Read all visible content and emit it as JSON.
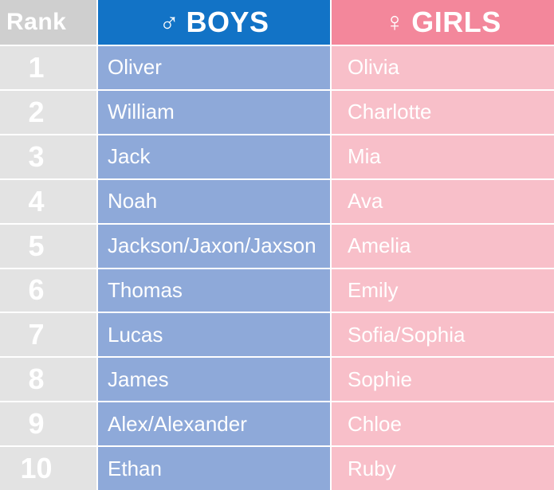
{
  "header": {
    "rank_label": "Rank",
    "boys_symbol": "♂",
    "boys_label": "BOYS",
    "girls_symbol": "♀",
    "girls_label": "GIRLS"
  },
  "colors": {
    "boys_header": "#1273c6",
    "boys_cell": "#8ea9d9",
    "girls_header": "#f3879b",
    "girls_cell": "#f8bfc9",
    "rank_header": "#cfcfcf",
    "rank_cell": "#e3e3e3"
  },
  "rows": [
    {
      "rank": "1",
      "boy": "Oliver",
      "girl": "Olivia"
    },
    {
      "rank": "2",
      "boy": "William",
      "girl": "Charlotte"
    },
    {
      "rank": "3",
      "boy": "Jack",
      "girl": "Mia"
    },
    {
      "rank": "4",
      "boy": "Noah",
      "girl": "Ava"
    },
    {
      "rank": "5",
      "boy": "Jackson/Jaxon/Jaxson",
      "girl": "Amelia"
    },
    {
      "rank": "6",
      "boy": "Thomas",
      "girl": "Emily"
    },
    {
      "rank": "7",
      "boy": "Lucas",
      "girl": "Sofia/Sophia"
    },
    {
      "rank": "8",
      "boy": "James",
      "girl": "Sophie"
    },
    {
      "rank": "9",
      "boy": "Alex/Alexander",
      "girl": "Chloe"
    },
    {
      "rank": "10",
      "boy": "Ethan",
      "girl": "Ruby"
    }
  ]
}
